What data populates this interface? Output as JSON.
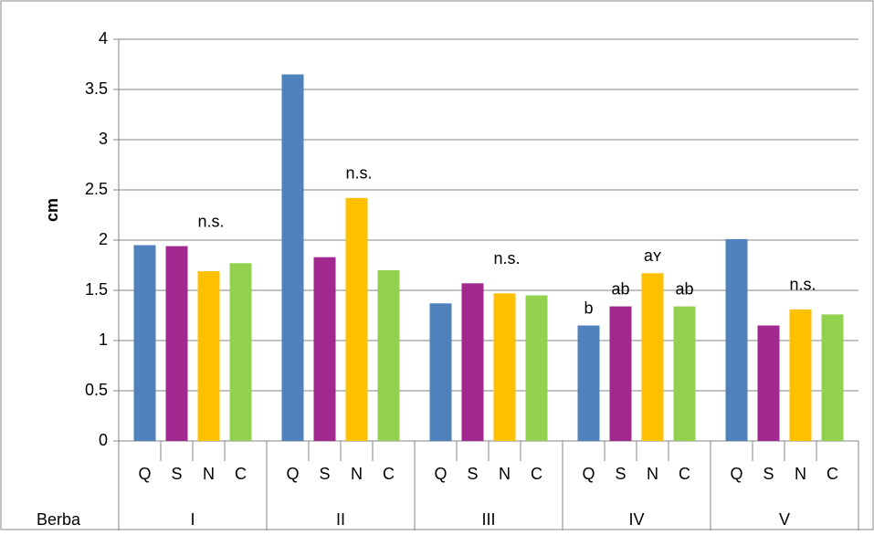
{
  "chart_data": {
    "type": "bar",
    "y_label": "cm",
    "row_label": "Berba",
    "categories": [
      "I",
      "II",
      "III",
      "IV",
      "V"
    ],
    "group_labels": [
      "n.s.",
      "n.s.",
      "n.s.",
      null,
      "n.s."
    ],
    "series": [
      {
        "name": "Q",
        "color": "#4f81bd",
        "values": [
          1.95,
          3.65,
          1.37,
          1.15,
          2.01
        ],
        "annotations": [
          null,
          null,
          null,
          "b",
          null
        ]
      },
      {
        "name": "S",
        "color": "#a0288f",
        "values": [
          1.94,
          1.83,
          1.57,
          1.34,
          1.15
        ],
        "annotations": [
          null,
          null,
          null,
          "ab",
          null
        ]
      },
      {
        "name": "N",
        "color": "#ffc000",
        "values": [
          1.69,
          2.42,
          1.47,
          1.67,
          1.31
        ],
        "annotations": [
          null,
          null,
          null,
          "aʏ",
          null
        ]
      },
      {
        "name": "C",
        "color": "#92d050",
        "values": [
          1.77,
          1.7,
          1.45,
          1.34,
          1.26
        ],
        "annotations": [
          null,
          null,
          null,
          "ab",
          null
        ]
      }
    ],
    "ylim": [
      0,
      4
    ],
    "yticks": [
      0,
      0.5,
      1,
      1.5,
      2,
      2.5,
      3,
      3.5,
      4
    ],
    "grid": true
  }
}
